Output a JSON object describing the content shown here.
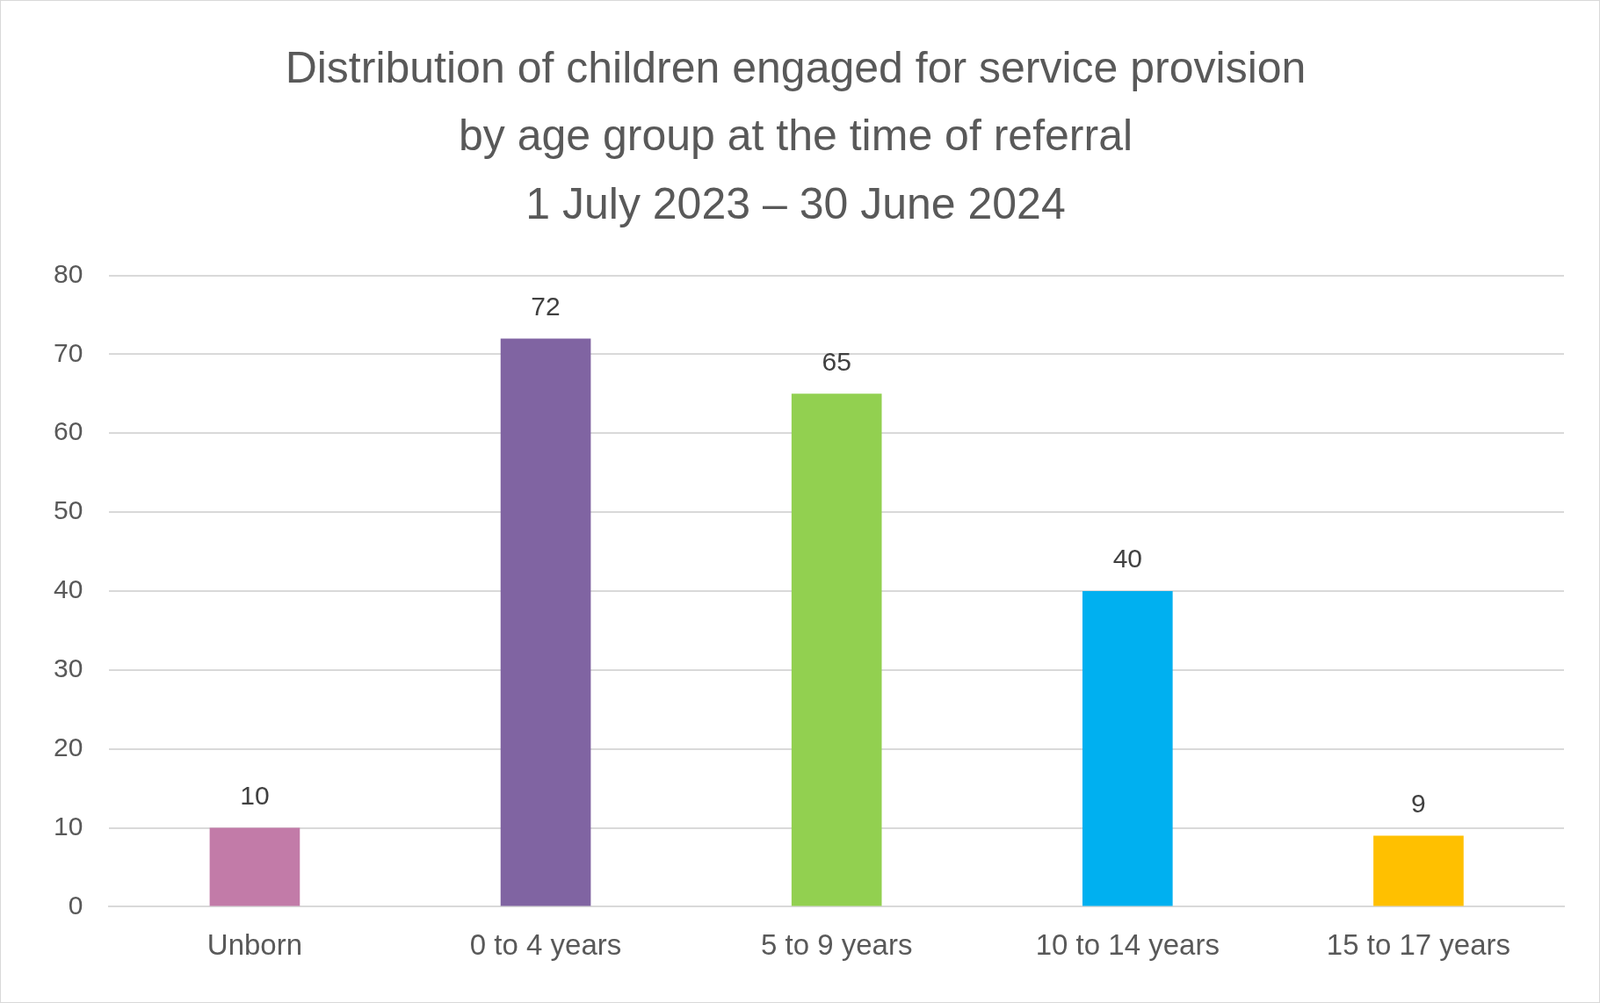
{
  "chart_data": {
    "type": "bar",
    "title": [
      "Distribution of children engaged for service provision",
      "by age group at the time of referral",
      "1 July 2023 – 30 June 2024"
    ],
    "categories": [
      "Unborn",
      "0 to 4 years",
      "5 to 9 years",
      "10 to 14 years",
      "15 to 17 years"
    ],
    "values": [
      10,
      72,
      65,
      40,
      9
    ],
    "colors": [
      "#c27ba8",
      "#8064a2",
      "#92d050",
      "#00b0f0",
      "#ffc000"
    ],
    "ylim": [
      0,
      80
    ],
    "yticks": [
      0,
      10,
      20,
      30,
      40,
      50,
      60,
      70,
      80
    ],
    "grid": true,
    "data_labels": true
  }
}
